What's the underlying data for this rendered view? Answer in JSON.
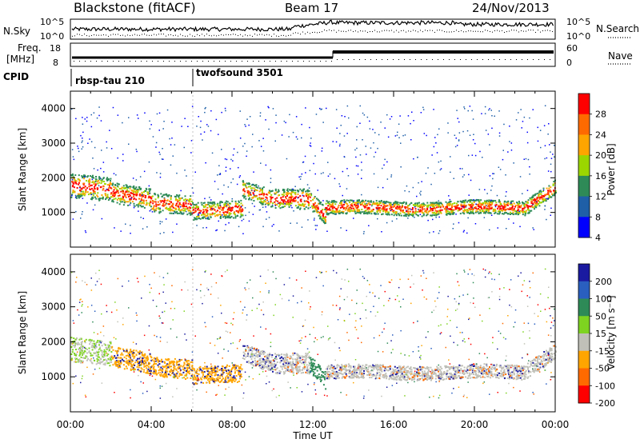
{
  "header": {
    "station": "Blackstone (fitACF)",
    "beam": "Beam 17",
    "date": "24/Nov/2013"
  },
  "noise_panel": {
    "left_label": "N.Sky",
    "right_label": "N.Search",
    "tick_top": "10^5",
    "tick_bottom": "10^0"
  },
  "freq_panel": {
    "left_label_line1": "Freq.",
    "left_label_line2": "[MHz]",
    "right_label": "Nave",
    "left_ticks": [
      "18",
      "8"
    ],
    "right_ticks": [
      "60",
      "0"
    ],
    "freq_change_time": "13:00"
  },
  "cpid_panel": {
    "label": "CPID",
    "programs": [
      {
        "name": "rbsp-tau 210",
        "start": "00:00"
      },
      {
        "name": "twofsound 3501",
        "start": "06:00"
      }
    ]
  },
  "chart_data": [
    {
      "type": "heatmap",
      "name": "power",
      "ylabel": "Slant Range [km]",
      "xlabel": "Time UT",
      "xlim": [
        0,
        24
      ],
      "ylim": [
        0,
        4500
      ],
      "x_ticks": [
        "00:00",
        "04:00",
        "08:00",
        "12:00",
        "16:00",
        "20:00",
        "00:00"
      ],
      "y_ticks": [
        1000,
        2000,
        3000,
        4000
      ],
      "colorbar": {
        "label": "Power [dB]",
        "ticks": [
          "28",
          "24",
          "20",
          "16",
          "12",
          "8",
          "4"
        ],
        "colors": [
          "#ff0000",
          "#ff6a00",
          "#ffa500",
          "#9bd600",
          "#2e8b57",
          "#1e5fa8",
          "#0000ff"
        ]
      }
    },
    {
      "type": "heatmap",
      "name": "velocity",
      "ylabel": "Slant Range [km]",
      "xlabel": "Time UT",
      "xlim": [
        0,
        24
      ],
      "ylim": [
        0,
        4500
      ],
      "x_ticks": [
        "00:00",
        "04:00",
        "08:00",
        "12:00",
        "16:00",
        "20:00",
        "00:00"
      ],
      "y_ticks": [
        1000,
        2000,
        3000,
        4000
      ],
      "colorbar": {
        "label": "Velocity [m s⁻¹]",
        "ticks": [
          "200",
          "100",
          "50",
          "15",
          "-15",
          "-50",
          "-100",
          "-200"
        ],
        "colors": [
          "#1a1aa0",
          "#2a5fc0",
          "#2e8b57",
          "#7ed321",
          "#c0c0b8",
          "#ffa500",
          "#ff6a00",
          "#ff0000"
        ]
      }
    }
  ]
}
